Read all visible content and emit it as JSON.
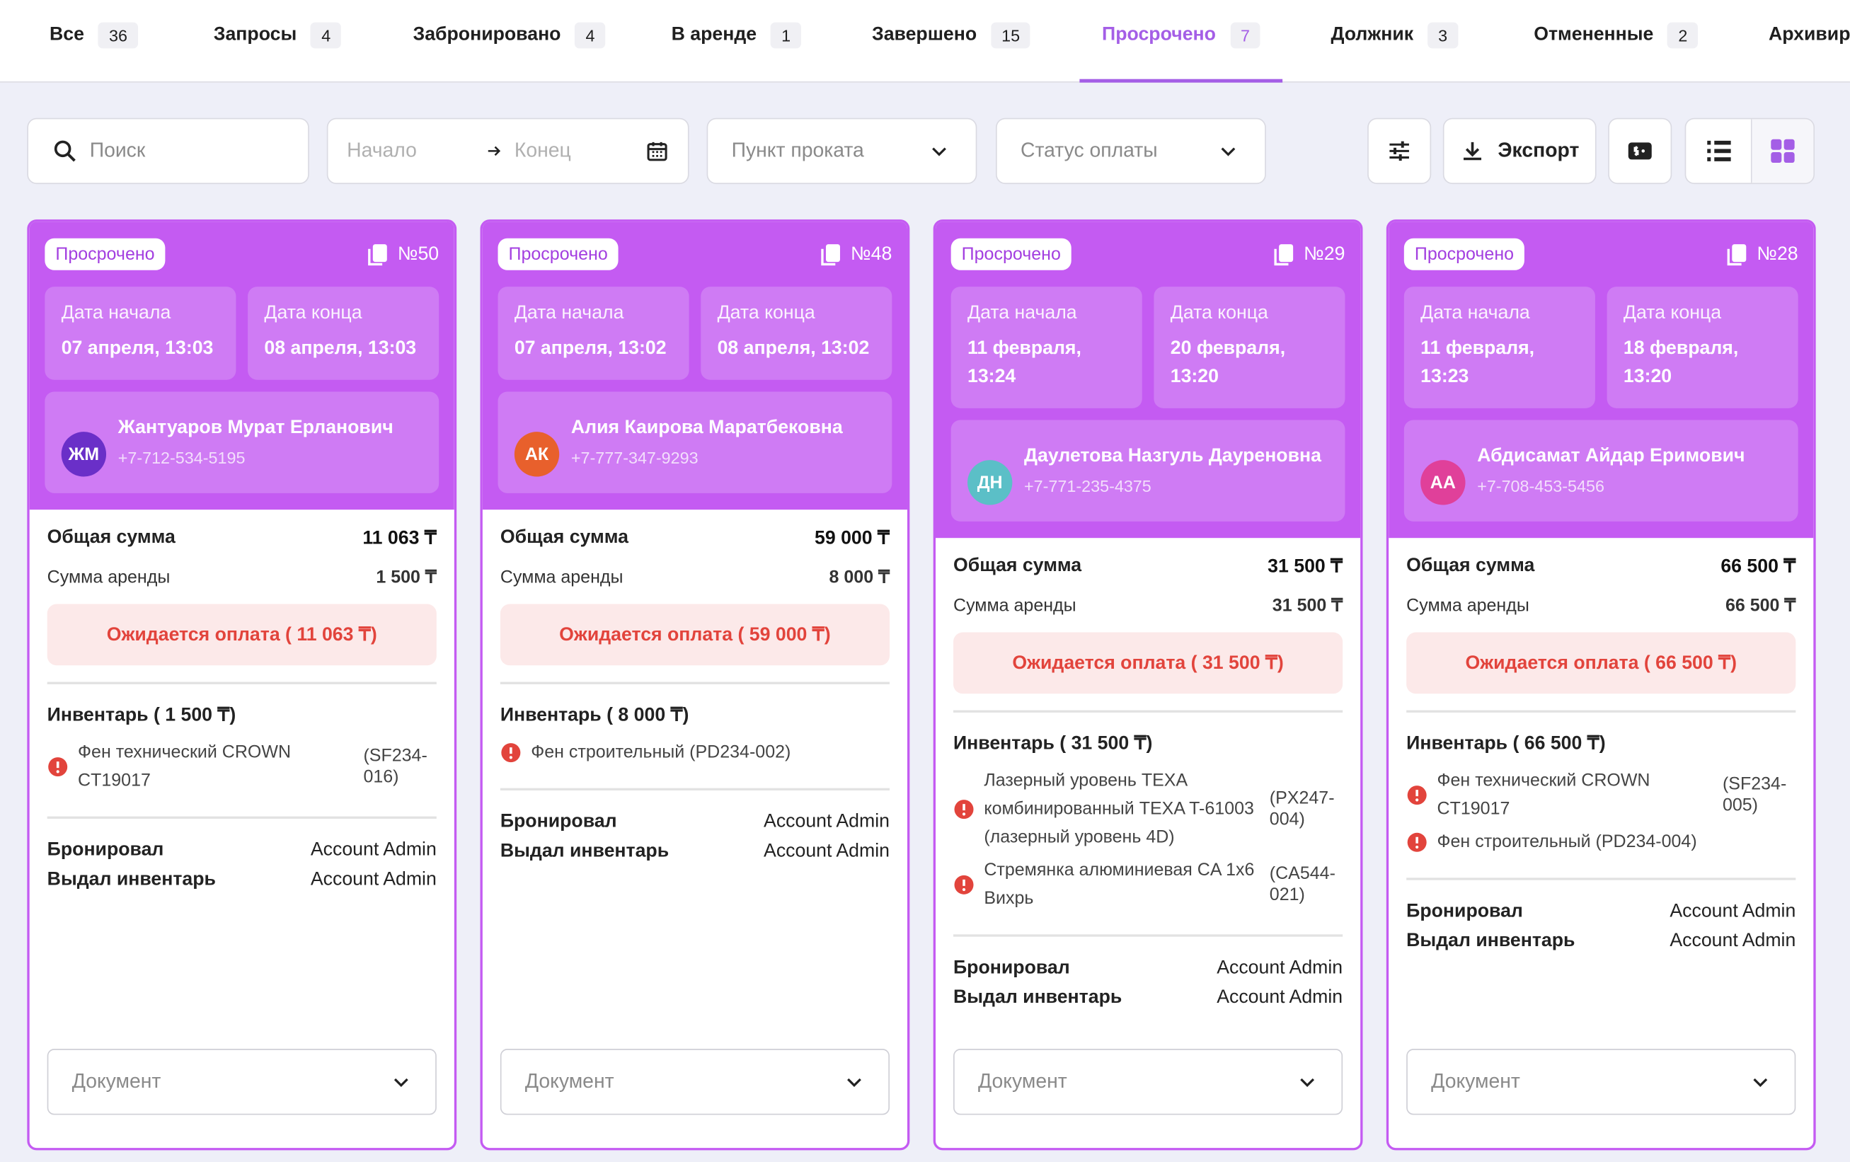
{
  "tabs": [
    {
      "label": "Все",
      "count": "36",
      "active": false
    },
    {
      "label": "Запросы",
      "count": "4",
      "active": false
    },
    {
      "label": "Забронировано",
      "count": "4",
      "active": false
    },
    {
      "label": "В аренде",
      "count": "1",
      "active": false
    },
    {
      "label": "Завершено",
      "count": "15",
      "active": false
    },
    {
      "label": "Просрочено",
      "count": "7",
      "active": true
    },
    {
      "label": "Должник",
      "count": "3",
      "active": false
    },
    {
      "label": "Отмененные",
      "count": "2",
      "active": false
    },
    {
      "label": "Архивиро",
      "count": null,
      "active": false
    }
  ],
  "filters": {
    "search": "Поиск",
    "start": "Начало",
    "end": "Конец",
    "point": "Пункт проката",
    "payment_status": "Статус оплаты",
    "export": "Экспорт"
  },
  "cards": [
    {
      "status": "Просрочено",
      "number": "№50",
      "start_label": "Дата начала",
      "start_date": "07 апреля, 13:03",
      "end_label": "Дата конца",
      "end_date": "08 апреля, 13:03",
      "initials": "ЖМ",
      "avatar_color": "#6a2fc8",
      "name": "Жантуаров Мурат Ерланович",
      "phone": "+7-712-534-5195",
      "total_label": "Общая сумма",
      "total": "11 063 ₸",
      "rent_label": "Сумма аренды",
      "rent": "1 500 ₸",
      "payment": "Ожидается оплата ( 11 063 ₸)",
      "inventory_title": "Инвентарь ( 1 500 ₸)",
      "items": [
        {
          "name": "Фен технический CROWN CT19017",
          "code": "(SF234-016)"
        }
      ],
      "booked_label": "Бронировал",
      "booked_by": "Account Admin",
      "issued_label": "Выдал инвентарь",
      "issued_by": "Account Admin",
      "document": "Документ"
    },
    {
      "status": "Просрочено",
      "number": "№48",
      "start_label": "Дата начала",
      "start_date": "07 апреля, 13:02",
      "end_label": "Дата конца",
      "end_date": "08 апреля, 13:02",
      "initials": "АК",
      "avatar_color": "#e8602c",
      "name": "Алия Каирова Маратбековна",
      "phone": "+7-777-347-9293",
      "total_label": "Общая сумма",
      "total": "59 000 ₸",
      "rent_label": "Сумма аренды",
      "rent": "8 000 ₸",
      "payment": "Ожидается оплата ( 59 000 ₸)",
      "inventory_title": "Инвентарь ( 8 000 ₸)",
      "items": [
        {
          "name": "Фен строительный (PD234-002)",
          "code": null
        }
      ],
      "booked_label": "Бронировал",
      "booked_by": "Account Admin",
      "issued_label": "Выдал инвентарь",
      "issued_by": "Account Admin",
      "document": "Документ"
    },
    {
      "status": "Просрочено",
      "number": "№29",
      "start_label": "Дата начала",
      "start_date": "11 февраля, 13:24",
      "end_label": "Дата конца",
      "end_date": "20 февраля, 13:20",
      "initials": "ДН",
      "avatar_color": "#5bbfc7",
      "name": "Даулетова Назгуль Дауреновна",
      "phone": "+7-771-235-4375",
      "total_label": "Общая сумма",
      "total": "31 500 ₸",
      "rent_label": "Сумма аренды",
      "rent": "31 500 ₸",
      "payment": "Ожидается оплата ( 31 500 ₸)",
      "inventory_title": "Инвентарь ( 31 500 ₸)",
      "items": [
        {
          "name": "Лазерный уровень TEXA комбинированный TEXA T-61003 (лазерный уровень 4D)",
          "code": "(PX247-004)"
        },
        {
          "name": "Стремянка алюминиевая CA 1x6 Вихрь",
          "code": "(CA544-021)"
        }
      ],
      "booked_label": "Бронировал",
      "booked_by": "Account Admin",
      "issued_label": "Выдал инвентарь",
      "issued_by": "Account Admin",
      "document": "Документ"
    },
    {
      "status": "Просрочено",
      "number": "№28",
      "start_label": "Дата начала",
      "start_date": "11 февраля, 13:23",
      "end_label": "Дата конца",
      "end_date": "18 февраля, 13:20",
      "initials": "АА",
      "avatar_color": "#e0409a",
      "name": "Абдисамат Айдар Еримович",
      "phone": "+7-708-453-5456",
      "total_label": "Общая сумма",
      "total": "66 500 ₸",
      "rent_label": "Сумма аренды",
      "rent": "66 500 ₸",
      "payment": "Ожидается оплата ( 66 500 ₸)",
      "inventory_title": "Инвентарь ( 66 500 ₸)",
      "items": [
        {
          "name": "Фен технический CROWN CT19017",
          "code": "(SF234-005)"
        },
        {
          "name": "Фен строительный (PD234-004)",
          "code": null
        }
      ],
      "booked_label": "Бронировал",
      "booked_by": "Account Admin",
      "issued_label": "Выдал инвентарь",
      "issued_by": "Account Admin",
      "document": "Документ"
    }
  ]
}
